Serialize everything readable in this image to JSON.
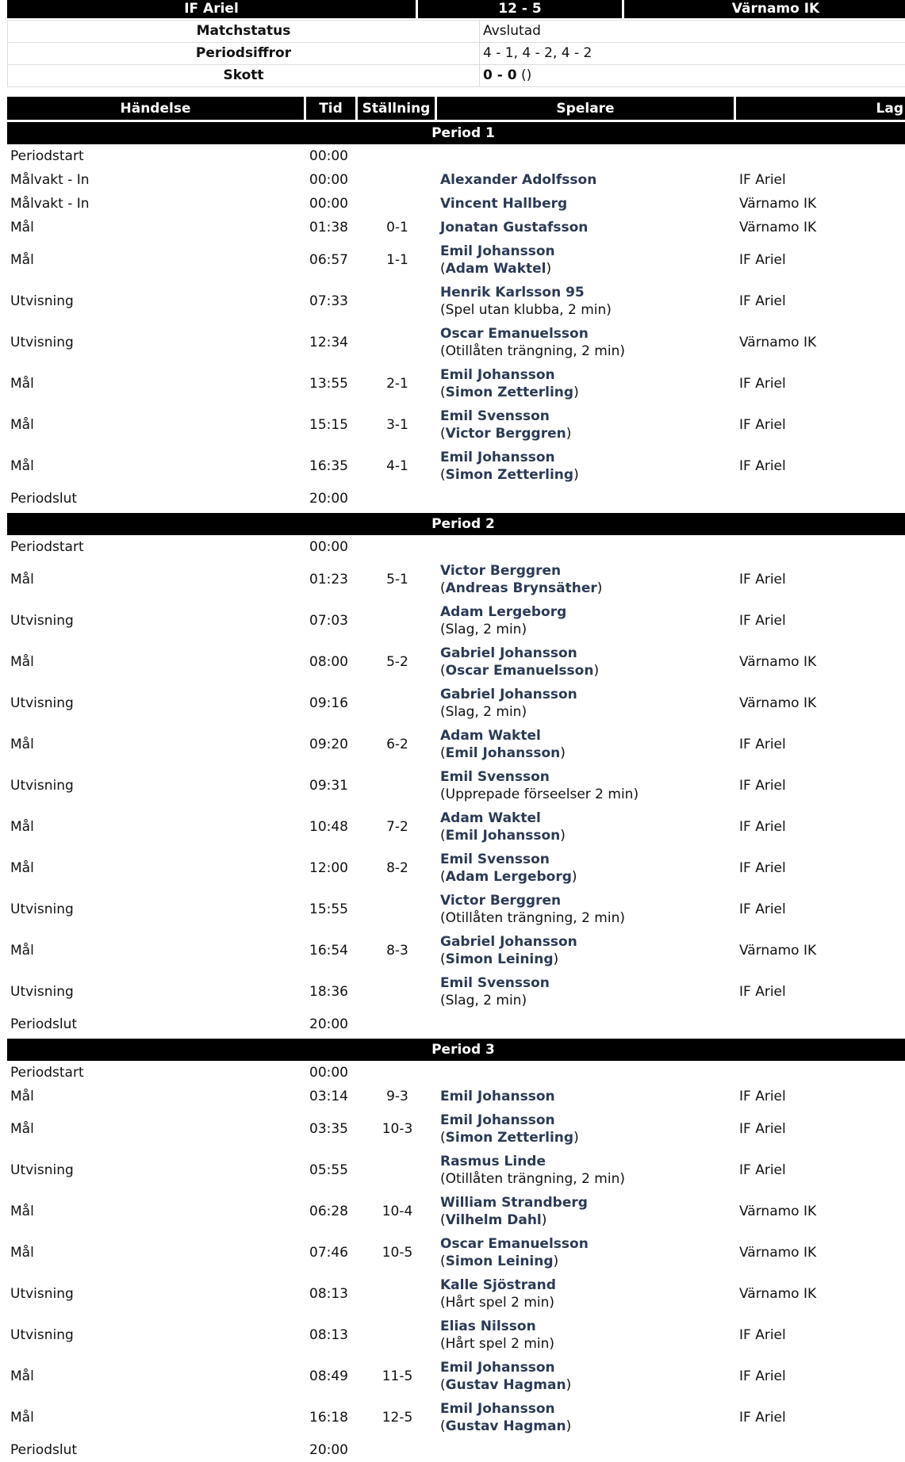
{
  "header": {
    "home": "IF Ariel",
    "score": "12 - 5",
    "away": "Värnamo IK"
  },
  "info": [
    {
      "label": "Matchstatus",
      "value": "Avslutad"
    },
    {
      "label": "Periodsiffror",
      "value": "4 - 1, 4 - 2, 4 - 2"
    },
    {
      "label": "Skott",
      "value_bold": "0 - 0",
      "value": " ()"
    }
  ],
  "columns": {
    "event": "Händelse",
    "time": "Tid",
    "score": "Ställning",
    "player": "Spelare",
    "team": "Lag"
  },
  "periods": [
    {
      "title": "Period 1",
      "rows": [
        {
          "event": "Periodstart",
          "time": "00:00"
        },
        {
          "event": "Målvakt - In",
          "time": "00:00",
          "player": "Alexander Adolfsson",
          "team": "IF Ariel"
        },
        {
          "event": "Målvakt - In",
          "time": "00:00",
          "player": "Vincent Hallberg",
          "team": "Värnamo IK"
        },
        {
          "event": "Mål",
          "time": "01:38",
          "score": "0-1",
          "player": "Jonatan Gustafsson",
          "team": "Värnamo IK"
        },
        {
          "event": "Mål",
          "time": "06:57",
          "score": "1-1",
          "player": "Emil Johansson",
          "assist": "Adam Waktel",
          "team": "IF Ariel"
        },
        {
          "event": "Utvisning",
          "time": "07:33",
          "player": "Henrik Karlsson 95",
          "penalty": "(Spel utan klubba, 2 min)",
          "team": "IF Ariel"
        },
        {
          "event": "Utvisning",
          "time": "12:34",
          "player": "Oscar Emanuelsson",
          "penalty": "(Otillåten trängning, 2 min)",
          "team": "Värnamo IK"
        },
        {
          "event": "Mål",
          "time": "13:55",
          "score": "2-1",
          "player": "Emil Johansson",
          "assist": "Simon Zetterling",
          "team": "IF Ariel"
        },
        {
          "event": "Mål",
          "time": "15:15",
          "score": "3-1",
          "player": "Emil Svensson",
          "assist": "Victor Berggren",
          "team": "IF Ariel"
        },
        {
          "event": "Mål",
          "time": "16:35",
          "score": "4-1",
          "player": "Emil Johansson",
          "assist": "Simon Zetterling",
          "team": "IF Ariel"
        },
        {
          "event": "Periodslut",
          "time": "20:00"
        }
      ]
    },
    {
      "title": "Period 2",
      "rows": [
        {
          "event": "Periodstart",
          "time": "00:00"
        },
        {
          "event": "Mål",
          "time": "01:23",
          "score": "5-1",
          "player": "Victor Berggren",
          "assist": "Andreas Brynsäther",
          "team": "IF Ariel"
        },
        {
          "event": "Utvisning",
          "time": "07:03",
          "player": "Adam Lergeborg",
          "penalty": "(Slag, 2 min)",
          "team": "IF Ariel"
        },
        {
          "event": "Mål",
          "time": "08:00",
          "score": "5-2",
          "player": "Gabriel Johansson",
          "assist": "Oscar Emanuelsson",
          "team": "Värnamo IK"
        },
        {
          "event": "Utvisning",
          "time": "09:16",
          "player": "Gabriel Johansson",
          "penalty": "(Slag, 2 min)",
          "team": "Värnamo IK"
        },
        {
          "event": "Mål",
          "time": "09:20",
          "score": "6-2",
          "player": "Adam Waktel",
          "assist": "Emil Johansson",
          "team": "IF Ariel"
        },
        {
          "event": "Utvisning",
          "time": "09:31",
          "player": "Emil Svensson",
          "penalty": "(Upprepade förseelser 2 min)",
          "team": "IF Ariel"
        },
        {
          "event": "Mål",
          "time": "10:48",
          "score": "7-2",
          "player": "Adam Waktel",
          "assist": "Emil Johansson",
          "team": "IF Ariel"
        },
        {
          "event": "Mål",
          "time": "12:00",
          "score": "8-2",
          "player": "Emil Svensson",
          "assist": "Adam Lergeborg",
          "team": "IF Ariel"
        },
        {
          "event": "Utvisning",
          "time": "15:55",
          "player": "Victor Berggren",
          "penalty": "(Otillåten trängning, 2 min)",
          "team": "IF Ariel"
        },
        {
          "event": "Mål",
          "time": "16:54",
          "score": "8-3",
          "player": "Gabriel Johansson",
          "assist": "Simon Leining",
          "team": "Värnamo IK"
        },
        {
          "event": "Utvisning",
          "time": "18:36",
          "player": "Emil Svensson",
          "penalty": "(Slag, 2 min)",
          "team": "IF Ariel"
        },
        {
          "event": "Periodslut",
          "time": "20:00"
        }
      ]
    },
    {
      "title": "Period 3",
      "rows": [
        {
          "event": "Periodstart",
          "time": "00:00"
        },
        {
          "event": "Mål",
          "time": "03:14",
          "score": "9-3",
          "player": "Emil Johansson",
          "team": "IF Ariel"
        },
        {
          "event": "Mål",
          "time": "03:35",
          "score": "10-3",
          "player": "Emil Johansson",
          "assist": "Simon Zetterling",
          "team": "IF Ariel"
        },
        {
          "event": "Utvisning",
          "time": "05:55",
          "player": "Rasmus Linde",
          "penalty": "(Otillåten trängning, 2 min)",
          "team": "IF Ariel"
        },
        {
          "event": "Mål",
          "time": "06:28",
          "score": "10-4",
          "player": "William Strandberg",
          "assist": "Vilhelm Dahl",
          "team": "Värnamo IK"
        },
        {
          "event": "Mål",
          "time": "07:46",
          "score": "10-5",
          "player": "Oscar Emanuelsson",
          "assist": "Simon Leining",
          "team": "Värnamo IK"
        },
        {
          "event": "Utvisning",
          "time": "08:13",
          "player": "Kalle Sjöstrand",
          "penalty": "(Hårt spel 2 min)",
          "team": "Värnamo IK"
        },
        {
          "event": "Utvisning",
          "time": "08:13",
          "player": "Elias Nilsson",
          "penalty": "(Hårt spel 2 min)",
          "team": "IF Ariel"
        },
        {
          "event": "Mål",
          "time": "08:49",
          "score": "11-5",
          "player": "Emil Johansson",
          "assist": "Gustav Hagman",
          "team": "IF Ariel"
        },
        {
          "event": "Mål",
          "time": "16:18",
          "score": "12-5",
          "player": "Emil Johansson",
          "assist": "Gustav Hagman",
          "team": "IF Ariel"
        },
        {
          "event": "Periodslut",
          "time": "20:00"
        }
      ]
    }
  ]
}
